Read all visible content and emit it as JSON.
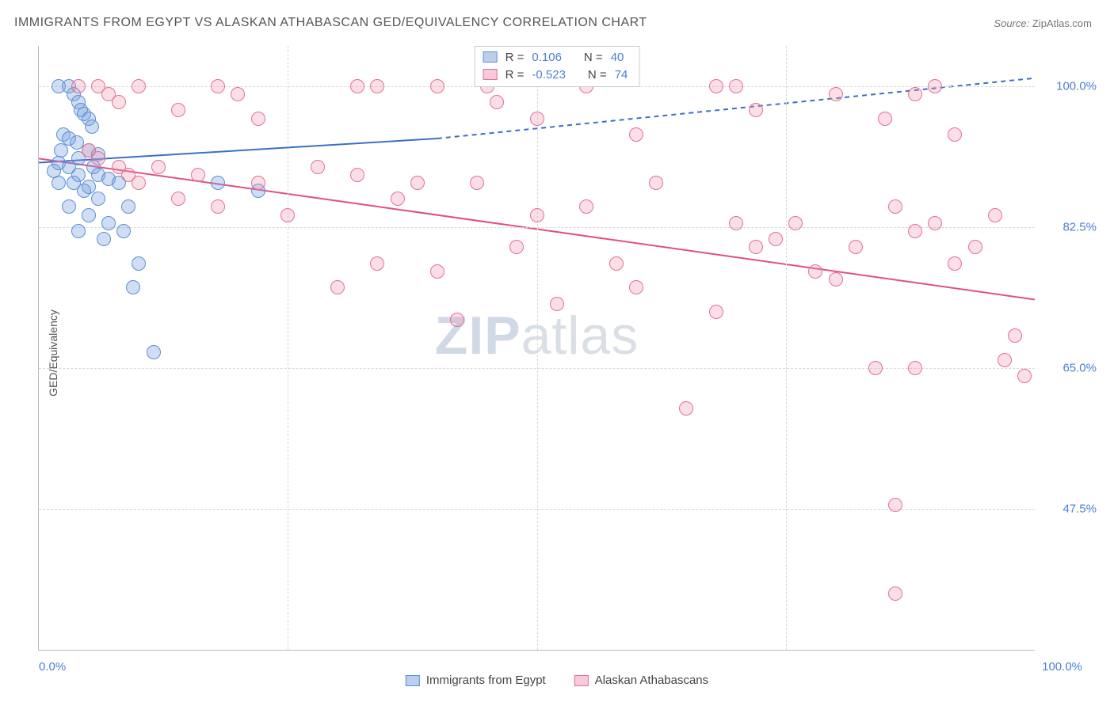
{
  "title": "IMMIGRANTS FROM EGYPT VS ALASKAN ATHABASCAN GED/EQUIVALENCY CORRELATION CHART",
  "source_label": "Source:",
  "source_value": "ZipAtlas.com",
  "watermark_zip": "ZIP",
  "watermark_atlas": "atlas",
  "yaxis_title": "GED/Equivalency",
  "chart": {
    "type": "scatter",
    "xlim": [
      0,
      100
    ],
    "ylim": [
      30,
      105
    ],
    "x_ticks": [
      0,
      100
    ],
    "x_tick_labels": [
      "0.0%",
      "100.0%"
    ],
    "x_minor_ticks": [
      25,
      50,
      75
    ],
    "y_ticks": [
      47.5,
      65.0,
      82.5,
      100.0
    ],
    "y_tick_labels": [
      "47.5%",
      "65.0%",
      "82.5%",
      "100.0%"
    ],
    "background_color": "#ffffff",
    "grid_color": "#d8d8d8",
    "axis_color": "#bbbbbb",
    "marker_radius": 9,
    "series": [
      {
        "name": "Immigrants from Egypt",
        "color_fill": "rgba(120,160,220,0.35)",
        "color_stroke": "#5b8fd6",
        "r": 0.106,
        "n": 40,
        "trend": {
          "x0": 0,
          "y0": 90.5,
          "x1_solid": 40,
          "y1_solid": 93.5,
          "x1": 100,
          "y1": 101.0,
          "stroke": "#3b6fc9",
          "width": 2
        },
        "points": [
          [
            2,
            100
          ],
          [
            3,
            100
          ],
          [
            3.5,
            99
          ],
          [
            4,
            98
          ],
          [
            4.2,
            97
          ],
          [
            4.5,
            96.5
          ],
          [
            5,
            96
          ],
          [
            5.3,
            95
          ],
          [
            2.5,
            94
          ],
          [
            3,
            93.5
          ],
          [
            3.8,
            93
          ],
          [
            2.2,
            92
          ],
          [
            5,
            92
          ],
          [
            6,
            91.5
          ],
          [
            4,
            91
          ],
          [
            2,
            90.5
          ],
          [
            3,
            90
          ],
          [
            5.5,
            90
          ],
          [
            1.5,
            89.5
          ],
          [
            4,
            89
          ],
          [
            6,
            89
          ],
          [
            7,
            88.5
          ],
          [
            2,
            88
          ],
          [
            3.5,
            88
          ],
          [
            5,
            87.5
          ],
          [
            8,
            88
          ],
          [
            4.5,
            87
          ],
          [
            6,
            86
          ],
          [
            3,
            85
          ],
          [
            5,
            84
          ],
          [
            7,
            83
          ],
          [
            8.5,
            82
          ],
          [
            6.5,
            81
          ],
          [
            4,
            82
          ],
          [
            9,
            85
          ],
          [
            10,
            78
          ],
          [
            9.5,
            75
          ],
          [
            18,
            88
          ],
          [
            11.5,
            67
          ],
          [
            22,
            87
          ]
        ]
      },
      {
        "name": "Alaskan Athabascans",
        "color_fill": "rgba(240,150,175,0.30)",
        "color_stroke": "#e66f94",
        "r": -0.523,
        "n": 74,
        "trend": {
          "x0": 0,
          "y0": 91.0,
          "x1_solid": 100,
          "y1_solid": 73.5,
          "x1": 100,
          "y1": 73.5,
          "stroke": "#e05080",
          "width": 2
        },
        "points": [
          [
            4,
            100
          ],
          [
            6,
            100
          ],
          [
            7,
            99
          ],
          [
            8,
            98
          ],
          [
            10,
            100
          ],
          [
            14,
            97
          ],
          [
            18,
            100
          ],
          [
            20,
            99
          ],
          [
            22,
            96
          ],
          [
            32,
            100
          ],
          [
            34,
            100
          ],
          [
            40,
            100
          ],
          [
            45,
            100
          ],
          [
            46,
            98
          ],
          [
            50,
            96
          ],
          [
            55,
            100
          ],
          [
            60,
            94
          ],
          [
            68,
            100
          ],
          [
            70,
            100
          ],
          [
            72,
            97
          ],
          [
            80,
            99
          ],
          [
            85,
            96
          ],
          [
            88,
            99
          ],
          [
            90,
            100
          ],
          [
            92,
            94
          ],
          [
            5,
            92
          ],
          [
            6,
            91
          ],
          [
            8,
            90
          ],
          [
            9,
            89
          ],
          [
            10,
            88
          ],
          [
            12,
            90
          ],
          [
            14,
            86
          ],
          [
            16,
            89
          ],
          [
            18,
            85
          ],
          [
            22,
            88
          ],
          [
            25,
            84
          ],
          [
            28,
            90
          ],
          [
            30,
            75
          ],
          [
            32,
            89
          ],
          [
            34,
            78
          ],
          [
            36,
            86
          ],
          [
            38,
            88
          ],
          [
            40,
            77
          ],
          [
            42,
            71
          ],
          [
            44,
            88
          ],
          [
            48,
            80
          ],
          [
            50,
            84
          ],
          [
            52,
            73
          ],
          [
            55,
            85
          ],
          [
            58,
            78
          ],
          [
            60,
            75
          ],
          [
            62,
            88
          ],
          [
            65,
            60
          ],
          [
            68,
            72
          ],
          [
            70,
            83
          ],
          [
            72,
            80
          ],
          [
            74,
            81
          ],
          [
            76,
            83
          ],
          [
            78,
            77
          ],
          [
            80,
            76
          ],
          [
            82,
            80
          ],
          [
            84,
            65
          ],
          [
            86,
            85
          ],
          [
            86,
            48
          ],
          [
            88,
            65
          ],
          [
            88,
            82
          ],
          [
            90,
            83
          ],
          [
            92,
            78
          ],
          [
            94,
            80
          ],
          [
            96,
            84
          ],
          [
            97,
            66
          ],
          [
            98,
            69
          ],
          [
            99,
            64
          ],
          [
            86,
            37
          ]
        ]
      }
    ]
  },
  "legend_top": {
    "r_label": "R =",
    "n_label": "N =",
    "rows": [
      {
        "swatch": "blue",
        "r": "0.106",
        "n": "40"
      },
      {
        "swatch": "pink",
        "r": "-0.523",
        "n": "74"
      }
    ]
  },
  "legend_bottom": [
    {
      "swatch": "blue",
      "label": "Immigrants from Egypt"
    },
    {
      "swatch": "pink",
      "label": "Alaskan Athabascans"
    }
  ]
}
